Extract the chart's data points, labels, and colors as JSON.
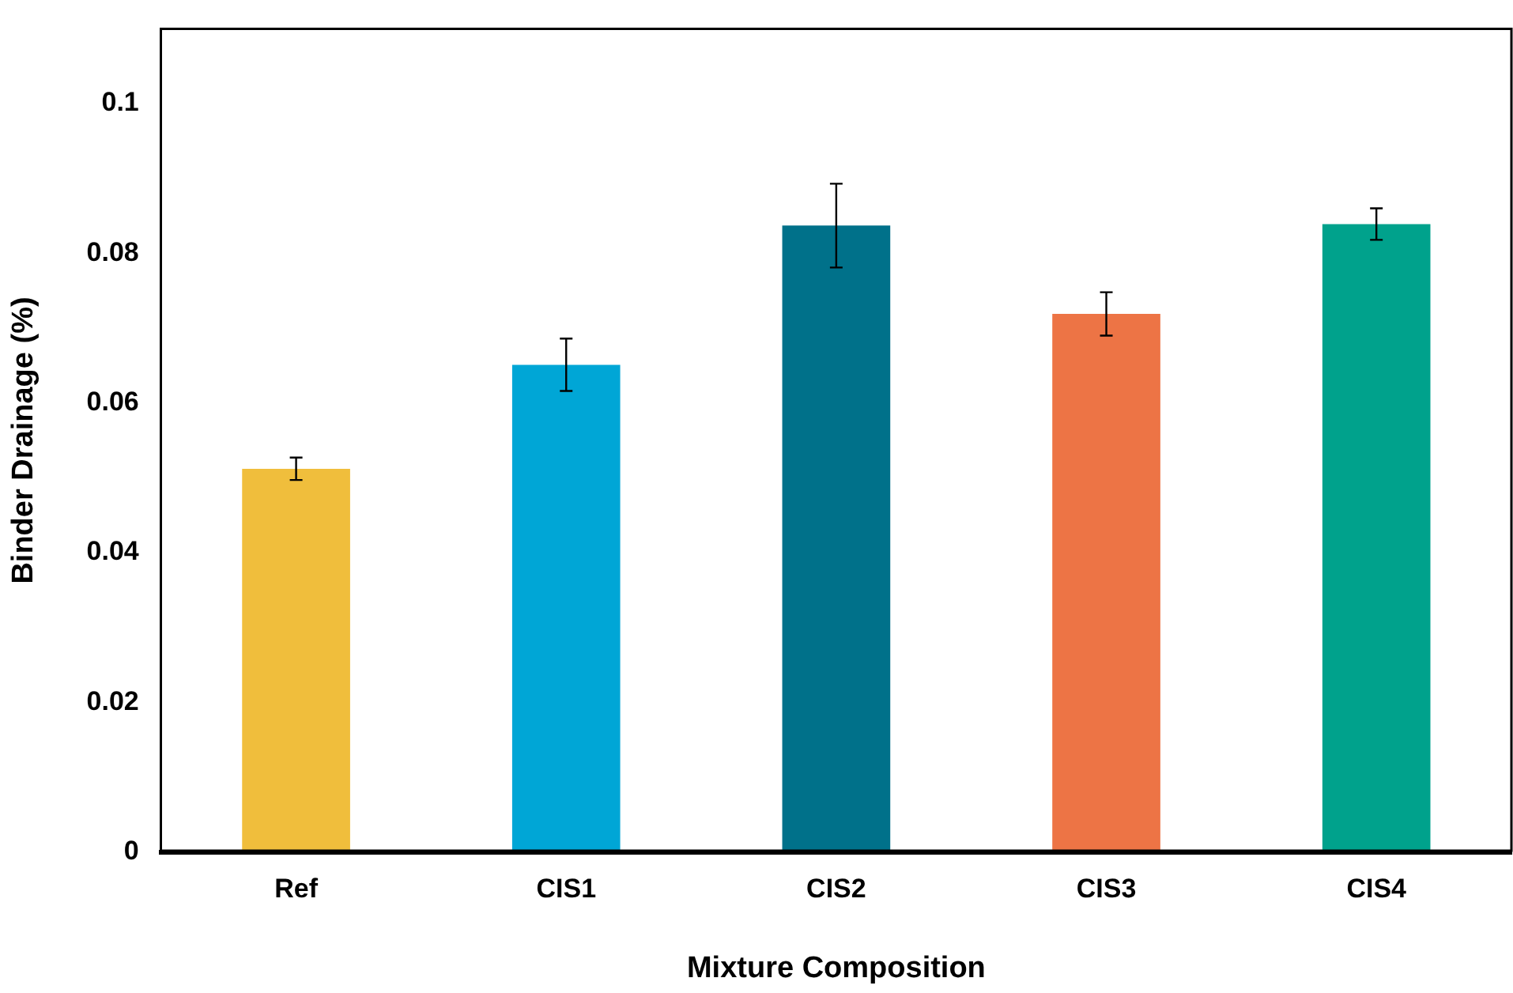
{
  "chart_data": {
    "type": "bar",
    "xlabel": "Mixture Composition",
    "ylabel": "Binder Drainage (%)",
    "categories": [
      "Ref",
      "CIS1",
      "CIS2",
      "CIS3",
      "CIS4"
    ],
    "values": [
      0.0512,
      0.0651,
      0.0837,
      0.0719,
      0.0839
    ],
    "colors": [
      "#f0be3c",
      "#00a6d6",
      "#00718a",
      "#ed7445",
      "#00a28c"
    ],
    "errors": [
      0.0015,
      0.0035,
      0.0056,
      0.0029,
      0.0021
    ],
    "ylim": [
      0,
      0.11
    ],
    "yticks": [
      0,
      0.02,
      0.04,
      0.06,
      0.08,
      0.1
    ],
    "grid": false,
    "legend": false
  }
}
